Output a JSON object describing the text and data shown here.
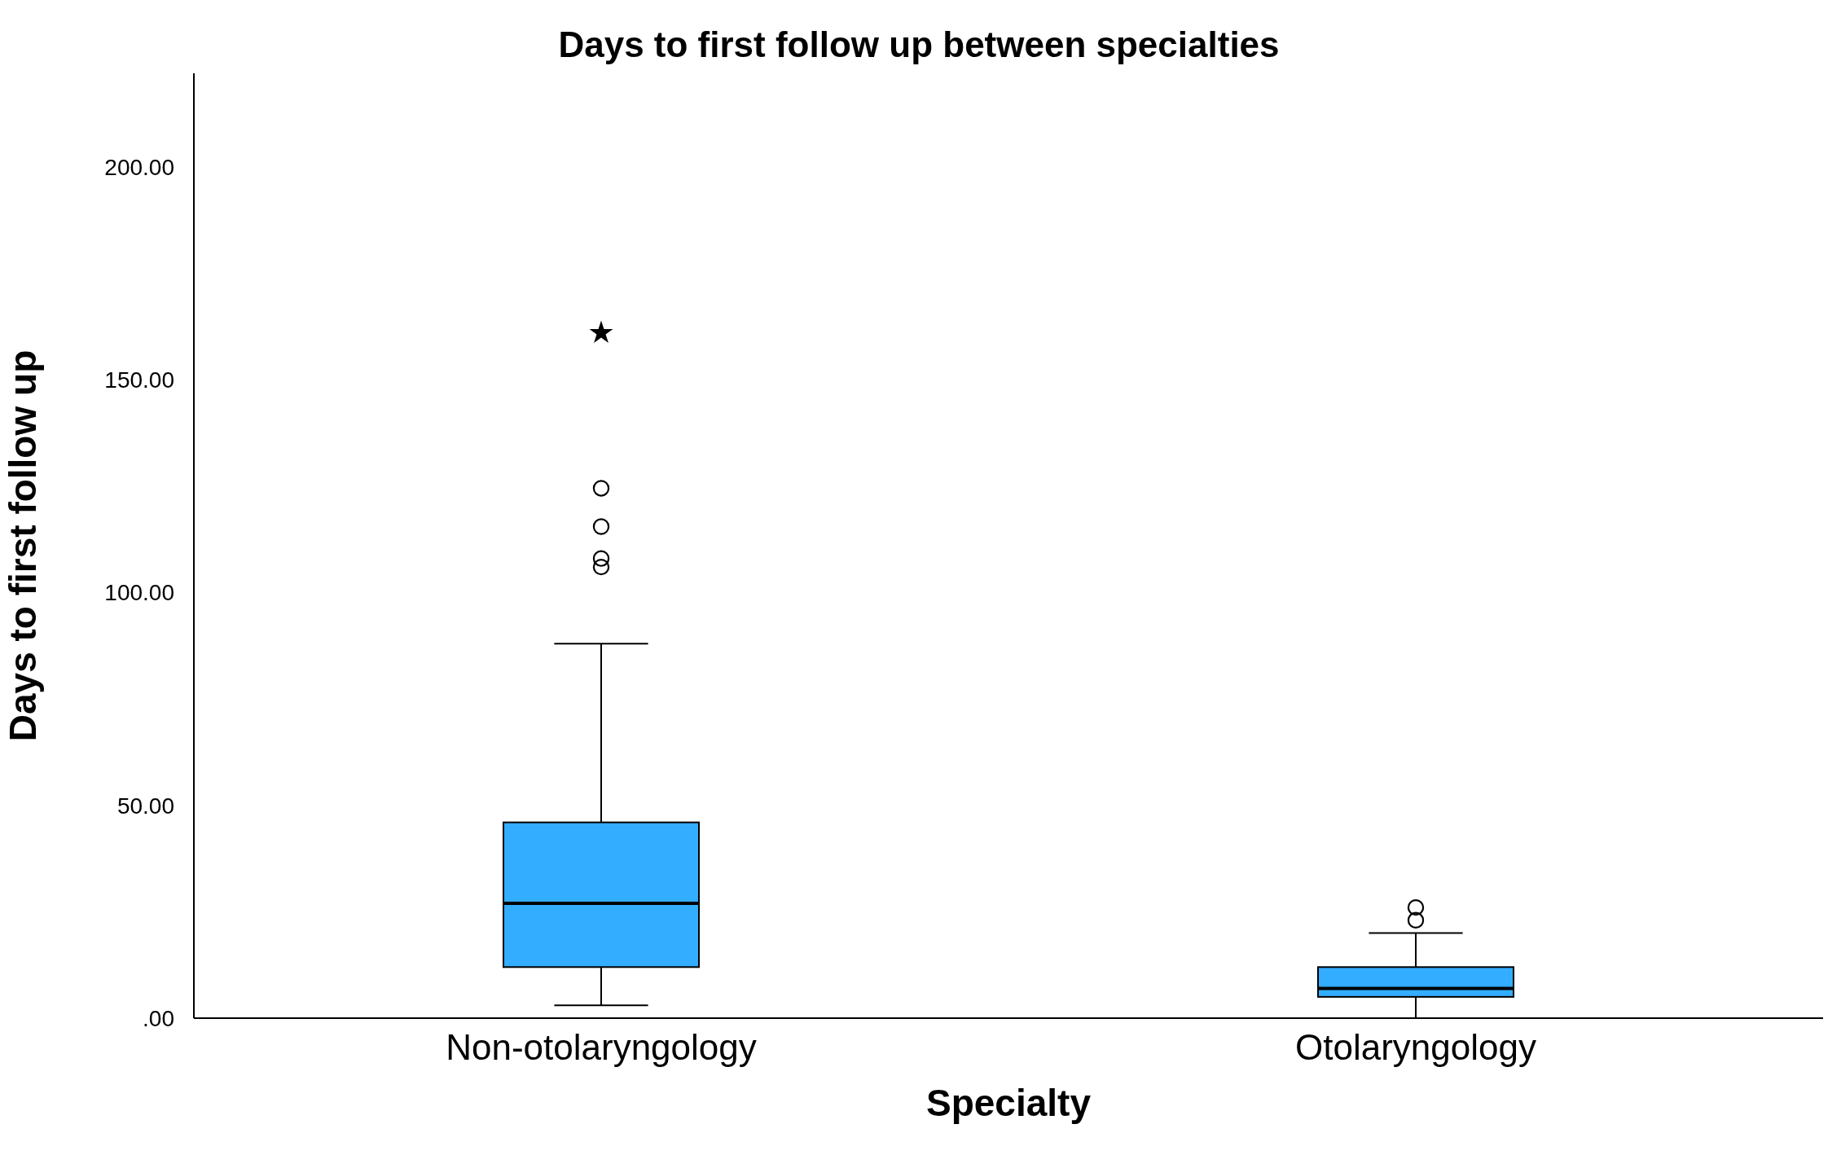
{
  "chart_data": {
    "type": "box",
    "title": "Days to first follow up between specialties",
    "xlabel": "Specialty",
    "ylabel": "Days to first follow up",
    "categories": [
      "Non-otolaryngology",
      "Otolaryngology"
    ],
    "ylim": [
      0,
      222
    ],
    "yticks": [
      {
        "value": 0,
        "label": ".00"
      },
      {
        "value": 50,
        "label": "50.00"
      },
      {
        "value": 100,
        "label": "100.00"
      },
      {
        "value": 150,
        "label": "150.00"
      },
      {
        "value": 200,
        "label": "200.00"
      }
    ],
    "grid": false,
    "series": [
      {
        "type": "box",
        "color": "#33adff",
        "boxes": [
          {
            "low": 3,
            "q1": 12,
            "median": 27,
            "q3": 46,
            "high": 88,
            "outliers": [
              106,
              108,
              115.5,
              124.5
            ]
          },
          {
            "low": 0,
            "q1": 5,
            "median": 7,
            "q3": 12,
            "high": 20,
            "outliers": [
              23,
              26
            ]
          }
        ]
      },
      {
        "type": "scatter",
        "color": "#000000",
        "marker": "star",
        "x": [
          "Non-otolaryngology"
        ],
        "values": [
          161
        ]
      }
    ]
  }
}
